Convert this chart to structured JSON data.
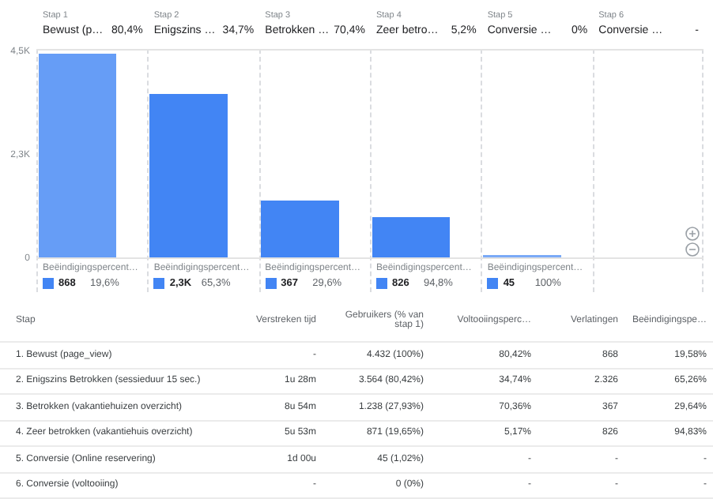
{
  "chart_data": {
    "type": "bar",
    "categories": [
      "Bewust (p…",
      "Enigszins …",
      "Betrokken …",
      "Zeer betro…",
      "Conversie …",
      "Conversie …"
    ],
    "values": [
      4432,
      3564,
      1238,
      871,
      45,
      0
    ],
    "colors": [
      "#669df6",
      "#4285f4",
      "#4285f4",
      "#4285f4",
      "#7baaf7",
      "#4285f4"
    ],
    "ylim": [
      0,
      4500
    ],
    "yticks": [
      0,
      {
        "value": 2250,
        "label": "2,3K"
      },
      {
        "value": 4500,
        "label": "4,5K"
      }
    ],
    "grid": false,
    "annotations": [
      "Stap 1",
      "80,4%",
      "Stap 2",
      "34,7%",
      "Stap 3",
      "70,4%",
      "Stap 4",
      "5,2%",
      "Stap 5",
      "0%",
      "Stap 6",
      "-",
      "Beëindigingspercent…",
      "868",
      "19,6%",
      "Beëindigingspercent…",
      "2,3K",
      "65,3%",
      "Beëindigingspercent…",
      "367",
      "29,6%",
      "Beëindigingspercent…",
      "826",
      "94,8%",
      "Beëindigingspercent…",
      "45",
      "100%",
      "Stap",
      "Verstreken tijd",
      "Gebruikers (% van stap 1)",
      "Voltooiingsperc…",
      "Verlatingen",
      "Beëindigingspe…",
      "1. Bewust (page_view)",
      "-",
      "4.432 (100%)",
      "80,42%",
      "868",
      "19,58%",
      "2. Enigszins Betrokken (sessieduur 15 sec.)",
      "1u 28m",
      "3.564 (80,42%)",
      "34,74%",
      "2.326",
      "65,26%",
      "3. Betrokken (vakantiehuizen overzicht)",
      "8u 54m",
      "1.238 (27,93%)",
      "70,36%",
      "367",
      "29,64%",
      "4. Zeer betrokken (vakantiehuis overzicht)",
      "5u 53m",
      "871 (19,65%)",
      "5,17%",
      "826",
      "94,83%",
      "5. Conversie (Online reservering)",
      "1d 00u",
      "45 (1,02%)",
      "-",
      "-",
      "-",
      "6. Conversie (voltooiing)",
      "-",
      "0 (0%)",
      "-",
      "-",
      "-"
    ]
  }
}
